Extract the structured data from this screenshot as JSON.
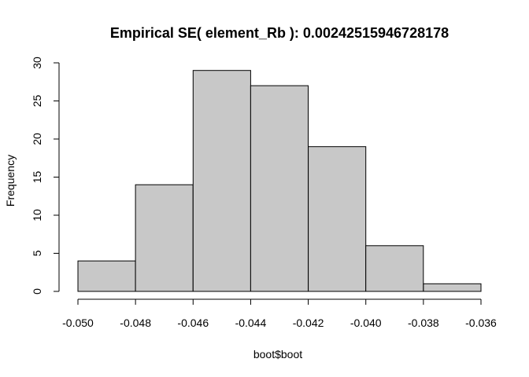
{
  "chart_data": {
    "type": "bar",
    "title": "Empirical SE( element_Rb ):  0.00242515946728178",
    "xlabel": "boot$boot",
    "ylabel": "Frequency",
    "bins": [
      {
        "from": -0.05,
        "to": -0.048,
        "count": 4
      },
      {
        "from": -0.048,
        "to": -0.046,
        "count": 14
      },
      {
        "from": -0.046,
        "to": -0.044,
        "count": 29
      },
      {
        "from": -0.044,
        "to": -0.042,
        "count": 27
      },
      {
        "from": -0.042,
        "to": -0.04,
        "count": 19
      },
      {
        "from": -0.04,
        "to": -0.038,
        "count": 6
      },
      {
        "from": -0.038,
        "to": -0.036,
        "count": 1
      }
    ],
    "xlim": [
      -0.05,
      -0.036
    ],
    "ylim": [
      0,
      30
    ],
    "x_ticks": [
      -0.05,
      -0.048,
      -0.046,
      -0.044,
      -0.042,
      -0.04,
      -0.038,
      -0.036
    ],
    "x_tick_labels": [
      "-0.050",
      "-0.048",
      "-0.046",
      "-0.044",
      "-0.042",
      "-0.040",
      "-0.038",
      "-0.036"
    ],
    "y_ticks": [
      0,
      5,
      10,
      15,
      20,
      25,
      30
    ],
    "y_tick_labels": [
      "0",
      "5",
      "10",
      "15",
      "20",
      "25",
      "30"
    ],
    "grid": false,
    "bar_color": "#c8c8c8",
    "edge_color": "#000000"
  }
}
